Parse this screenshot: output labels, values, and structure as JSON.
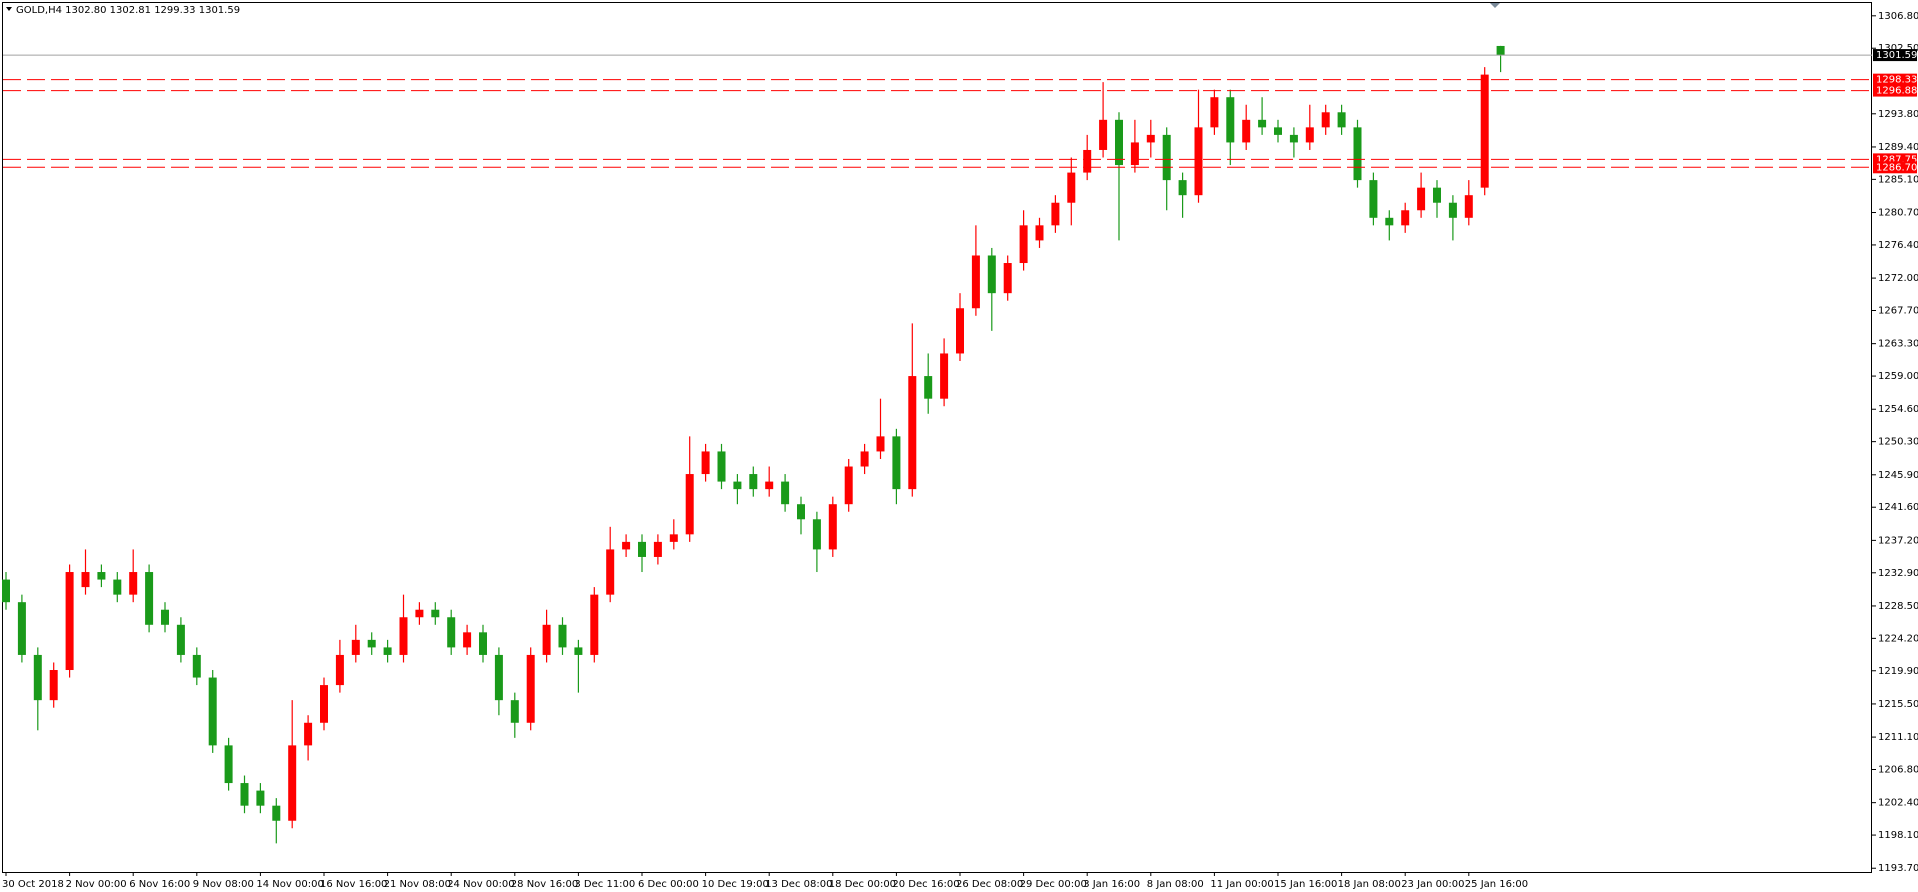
{
  "chart_data": {
    "type": "candlestick",
    "title": "GOLD,H4  1302.80 1302.81 1299.33 1301.59",
    "up_color": "#ff0000",
    "down_color": "#1a9a1a",
    "ylim": [
      1193.2,
      1308.5
    ],
    "yticks": [
      {
        "value": 1306.8,
        "label": "1306.80"
      },
      {
        "value": 1302.5,
        "label": "1302.50"
      },
      {
        "value": 1293.8,
        "label": "1293.80"
      },
      {
        "value": 1289.4,
        "label": "1289.40"
      },
      {
        "value": 1285.1,
        "label": "1285.10"
      },
      {
        "value": 1280.7,
        "label": "1280.70"
      },
      {
        "value": 1276.4,
        "label": "1276.40"
      },
      {
        "value": 1272,
        "label": "1272.00"
      },
      {
        "value": 1267.7,
        "label": "1267.70"
      },
      {
        "value": 1263.3,
        "label": "1263.30"
      },
      {
        "value": 1259,
        "label": "1259.00"
      },
      {
        "value": 1254.6,
        "label": "1254.60"
      },
      {
        "value": 1250.3,
        "label": "1250.30"
      },
      {
        "value": 1245.9,
        "label": "1245.90"
      },
      {
        "value": 1241.6,
        "label": "1241.60"
      },
      {
        "value": 1237.2,
        "label": "1237.20"
      },
      {
        "value": 1232.9,
        "label": "1232.90"
      },
      {
        "value": 1228.5,
        "label": "1228.50"
      },
      {
        "value": 1224.2,
        "label": "1224.20"
      },
      {
        "value": 1219.9,
        "label": "1219.90"
      },
      {
        "value": 1215.5,
        "label": "1215.50"
      },
      {
        "value": 1211.1,
        "label": "1211.10"
      },
      {
        "value": 1206.8,
        "label": "1206.80"
      },
      {
        "value": 1202.4,
        "label": "1202.40"
      },
      {
        "value": 1198.1,
        "label": "1198.10"
      },
      {
        "value": 1193.7,
        "label": "1193.70"
      }
    ],
    "levels": [
      {
        "value": 1301.59,
        "label": "1301.59",
        "color": "#a0a0a0",
        "label_color": "#000000",
        "style": "solid"
      },
      {
        "value": 1298.33,
        "label": "1298.33",
        "color": "#ff0000",
        "label_color": "#ff0000",
        "style": "dashed"
      },
      {
        "value": 1296.88,
        "label": "1296.88",
        "color": "#ff0000",
        "label_color": "#ff0000",
        "style": "dashed"
      },
      {
        "value": 1287.75,
        "label": "1287.75",
        "color": "#ff0000",
        "label_color": "#ff0000",
        "style": "dashed"
      },
      {
        "value": 1286.7,
        "label": "1286.70",
        "color": "#ff0000",
        "label_color": "#ff0000",
        "style": "dashed"
      }
    ],
    "categories": [
      "30 Oct 2018",
      null,
      null,
      null,
      "2 Nov 00:00",
      null,
      null,
      null,
      "6 Nov 16:00",
      null,
      null,
      null,
      "9 Nov 08:00",
      null,
      null,
      null,
      "14 Nov 00:00",
      null,
      null,
      null,
      "16 Nov 16:00",
      null,
      null,
      null,
      "21 Nov 08:00",
      null,
      null,
      null,
      "24 Nov 00:00",
      null,
      null,
      null,
      "28 Nov 16:00",
      null,
      null,
      null,
      "3 Dec 11:00",
      null,
      null,
      null,
      "6 Dec 00:00",
      null,
      null,
      null,
      "10 Dec 19:00",
      null,
      null,
      null,
      "13 Dec 08:00",
      null,
      null,
      null,
      "18 Dec 00:00",
      null,
      null,
      null,
      "20 Dec 16:00",
      null,
      null,
      null,
      "26 Dec 08:00",
      null,
      null,
      null,
      "29 Dec 00:00",
      null,
      null,
      null,
      "3 Jan 16:00",
      null,
      null,
      null,
      "8 Jan 08:00",
      null,
      null,
      null,
      "11 Jan 00:00",
      null,
      null,
      null,
      "15 Jan 16:00",
      null,
      null,
      null,
      "18 Jan 08:00",
      null,
      null,
      null,
      "23 Jan 00:00",
      null,
      null,
      null,
      "25 Jan 16:00",
      null,
      null
    ],
    "open": [
      1232,
      1229,
      1222,
      1216,
      1220,
      1231,
      1233,
      1232,
      1230,
      1233,
      1228,
      1226,
      1222,
      1219,
      1210,
      1205,
      1204,
      1202,
      1200,
      1210,
      1213,
      1218,
      1222,
      1224,
      1223,
      1222,
      1227,
      1228,
      1227,
      1223,
      1225,
      1222,
      1216,
      1213,
      1222,
      1226,
      1223,
      1222,
      1230,
      1236,
      1237,
      1235,
      1237,
      1238,
      1246,
      1249,
      1245,
      1246,
      1244,
      1245,
      1242,
      1240,
      1236,
      1242,
      1247,
      1249,
      1251,
      1244,
      1259,
      1256,
      1262,
      1268,
      1275,
      1270,
      1274,
      1277,
      1279,
      1282,
      1286,
      1289,
      1293,
      1287,
      1290,
      1291,
      1285,
      1283,
      1292,
      1296,
      1290,
      1293,
      1292,
      1291,
      1290,
      1292,
      1294,
      1292,
      1285,
      1280,
      1279,
      1281,
      1284,
      1282,
      1280,
      1284,
      1302.8
    ],
    "high": [
      1233,
      1230,
      1223,
      1221,
      1234,
      1236,
      1234,
      1233,
      1236,
      1234,
      1229,
      1227,
      1223,
      1220,
      1211,
      1206,
      1205,
      1203,
      1216,
      1214,
      1219,
      1224,
      1226,
      1225,
      1224,
      1230,
      1229,
      1229,
      1228,
      1226,
      1226,
      1223,
      1217,
      1223,
      1228,
      1227,
      1224,
      1231,
      1239,
      1238,
      1238,
      1238,
      1240,
      1251,
      1250,
      1250,
      1246,
      1247,
      1247,
      1246,
      1243,
      1241,
      1243,
      1248,
      1250,
      1256,
      1252,
      1266,
      1262,
      1264,
      1270,
      1279,
      1276,
      1275,
      1281,
      1280,
      1283,
      1288,
      1291,
      1298,
      1294,
      1293,
      1293,
      1292,
      1286,
      1297,
      1297,
      1297,
      1295,
      1296,
      1293,
      1292,
      1295,
      1295,
      1295,
      1293,
      1286,
      1281,
      1282,
      1286,
      1285,
      1283,
      1285,
      1300,
      1302.81
    ],
    "low": [
      1228,
      1221,
      1212,
      1215,
      1219,
      1230,
      1231,
      1229,
      1229,
      1225,
      1225,
      1221,
      1218,
      1209,
      1204,
      1201,
      1201,
      1197,
      1199,
      1208,
      1212,
      1217,
      1221,
      1222,
      1221,
      1221,
      1226,
      1226,
      1222,
      1222,
      1221,
      1214,
      1211,
      1212,
      1221,
      1222,
      1217,
      1221,
      1229,
      1235,
      1233,
      1234,
      1236,
      1237,
      1245,
      1244,
      1242,
      1243,
      1243,
      1241,
      1238,
      1233,
      1235,
      1241,
      1246,
      1248,
      1242,
      1243,
      1254,
      1255,
      1261,
      1267,
      1265,
      1269,
      1273,
      1276,
      1278,
      1279,
      1285,
      1288,
      1277,
      1286,
      1288,
      1281,
      1280,
      1282,
      1291,
      1287,
      1289,
      1291,
      1290,
      1288,
      1289,
      1291,
      1291,
      1284,
      1279,
      1277,
      1278,
      1280,
      1280,
      1277,
      1279,
      1283,
      1299.33
    ],
    "close": [
      1229,
      1222,
      1216,
      1220,
      1233,
      1233,
      1232,
      1230,
      1233,
      1226,
      1226,
      1222,
      1219,
      1210,
      1205,
      1202,
      1202,
      1200,
      1210,
      1213,
      1218,
      1222,
      1224,
      1223,
      1222,
      1227,
      1228,
      1227,
      1223,
      1225,
      1222,
      1216,
      1213,
      1222,
      1226,
      1223,
      1222,
      1230,
      1236,
      1237,
      1235,
      1237,
      1238,
      1246,
      1249,
      1245,
      1244,
      1244,
      1245,
      1242,
      1240,
      1236,
      1242,
      1247,
      1249,
      1251,
      1244,
      1259,
      1256,
      1262,
      1268,
      1275,
      1270,
      1274,
      1279,
      1279,
      1282,
      1286,
      1289,
      1293,
      1287,
      1290,
      1291,
      1285,
      1283,
      1292,
      1296,
      1290,
      1293,
      1292,
      1291,
      1290,
      1292,
      1294,
      1292,
      1285,
      1280,
      1279,
      1281,
      1284,
      1282,
      1280,
      1283,
      1299,
      1301.59
    ]
  }
}
